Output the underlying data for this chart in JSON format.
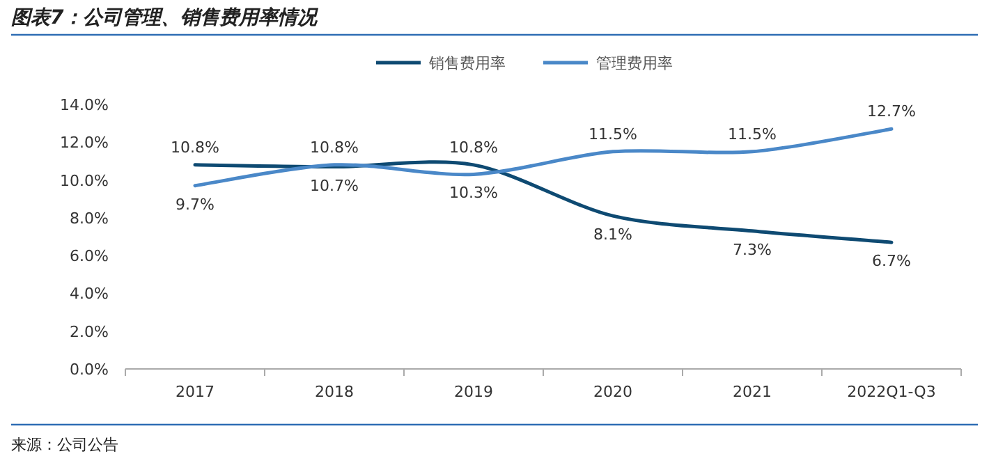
{
  "chart_data": {
    "type": "line",
    "title": "图表7：公司管理、销售费用率情况",
    "categories": [
      "2017",
      "2018",
      "2019",
      "2020",
      "2021",
      "2022Q1-Q3"
    ],
    "series": [
      {
        "name": "销售费用率",
        "color": "#0e4a72",
        "values": [
          10.8,
          10.7,
          10.8,
          8.1,
          7.3,
          6.7
        ],
        "value_labels": [
          "10.8%",
          "10.7%",
          "10.8%",
          "8.1%",
          "7.3%",
          "6.7%"
        ]
      },
      {
        "name": "管理费用率",
        "color": "#4a88c8",
        "values": [
          9.7,
          10.8,
          10.3,
          11.5,
          11.5,
          12.7
        ],
        "value_labels": [
          "9.7%",
          "10.8%",
          "10.3%",
          "11.5%",
          "11.5%",
          "12.7%"
        ]
      }
    ],
    "ylim": [
      0,
      14
    ],
    "yticks": [
      {
        "value": 0,
        "label": "0.0%"
      },
      {
        "value": 2,
        "label": "2.0%"
      },
      {
        "value": 4,
        "label": "4.0%"
      },
      {
        "value": 6,
        "label": "6.0%"
      },
      {
        "value": 8,
        "label": "8.0%"
      },
      {
        "value": 10,
        "label": "10.0%"
      },
      {
        "value": 12,
        "label": "12.0%"
      },
      {
        "value": 14,
        "label": "14.0%"
      }
    ],
    "legend": "top",
    "grid": false,
    "marker": "none",
    "line_style": "solid",
    "annotations": [
      "来源：公司公告"
    ]
  }
}
